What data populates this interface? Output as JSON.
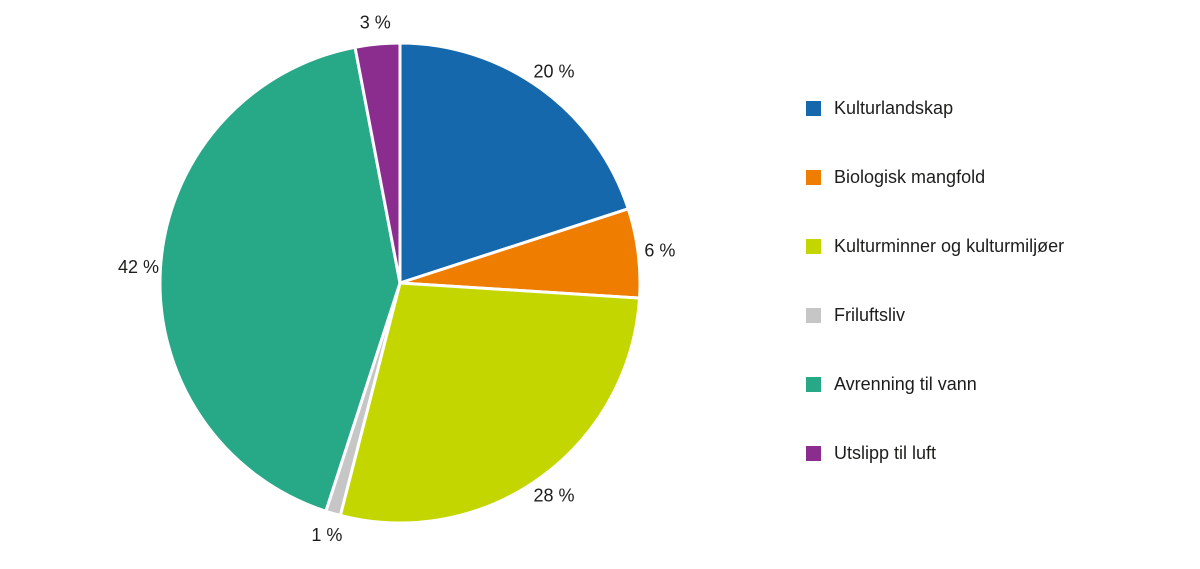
{
  "chart_data": {
    "type": "pie",
    "title": "",
    "labels": [
      "Kulturlandskap",
      "Biologisk mangfold",
      "Kulturminner og kulturmiljøer",
      "Friluftsliv",
      "Avrenning til vann",
      "Utslipp til luft"
    ],
    "values": [
      20,
      6,
      28,
      1,
      42,
      3
    ],
    "value_labels": [
      "20 %",
      "6 %",
      "28 %",
      "1 %",
      "42 %",
      "3 %"
    ],
    "colors": [
      "#1668ac",
      "#ef7d00",
      "#c4d600",
      "#c6c6c6",
      "#27a886",
      "#8b2d8e"
    ],
    "start_angle_deg": 0,
    "direction": "clockwise",
    "legend_position": "right",
    "slice_border_color": "#ffffff",
    "label_color": "#1d1d1b"
  }
}
